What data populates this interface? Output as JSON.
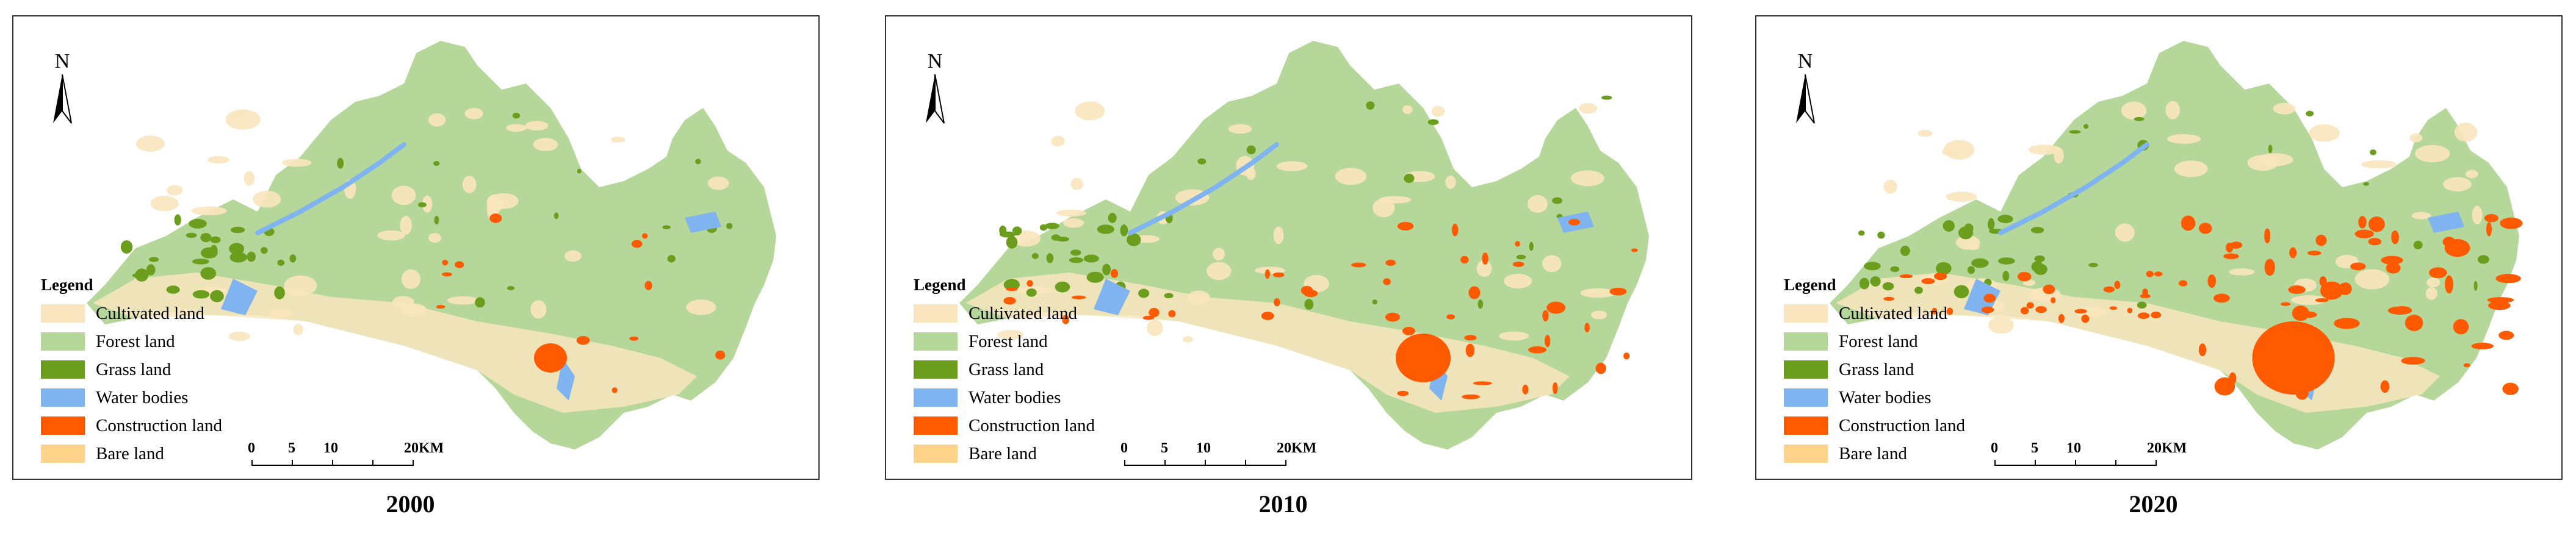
{
  "panels": [
    {
      "year": "2000",
      "construction_level": "low"
    },
    {
      "year": "2010",
      "construction_level": "medium"
    },
    {
      "year": "2020",
      "construction_level": "high"
    }
  ],
  "north_label": "N",
  "legend": {
    "title": "Legend",
    "items": [
      {
        "label": "Cultivated land",
        "color": "#F9E6BE"
      },
      {
        "label": "Forest land",
        "color": "#B5D79A"
      },
      {
        "label": "Grass land",
        "color": "#6A9E1C"
      },
      {
        "label": "Water bodies",
        "color": "#7FB4F0"
      },
      {
        "label": "Construction land",
        "color": "#FF5A00"
      },
      {
        "label": "Bare land",
        "color": "#FFD38C"
      }
    ]
  },
  "scalebar": {
    "labels": [
      "0",
      "5",
      "10",
      "20KM"
    ]
  }
}
